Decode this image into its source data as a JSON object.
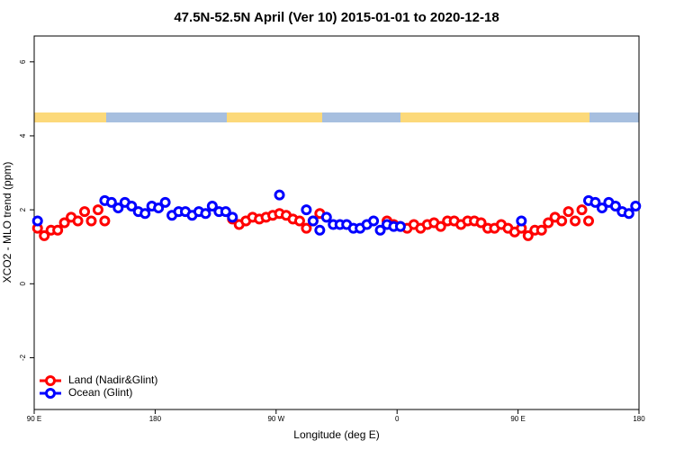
{
  "chart_data": {
    "type": "scatter",
    "title": "47.5N-52.5N April (Ver 10)   2015-01-01 to 2020-12-18",
    "xlabel": "Longitude (deg E)",
    "ylabel": "XCO2 - MLO trend (ppm)",
    "xlim": [
      90,
      540
    ],
    "ylim": [
      -3.4,
      6.7
    ],
    "xticks": [
      {
        "value": 90,
        "label": "90 E"
      },
      180,
      {
        "value": 270,
        "label": "90 W"
      },
      {
        "value": 360,
        "label": "0"
      },
      {
        "value": 450,
        "label": "90 E"
      },
      {
        "value": 540,
        "label": "180"
      }
    ],
    "yticks": [
      -2,
      0,
      2,
      4,
      6
    ],
    "legend": "bottom-left",
    "series": [
      {
        "name": "Land (Nadir&Glint)",
        "color": "#ff0000",
        "x": [
          92.5,
          97.5,
          102.5,
          107.5,
          112.5,
          117.5,
          122.5,
          127.5,
          132.5,
          137.5,
          142.5,
          237.5,
          242.5,
          247.5,
          252.5,
          257.5,
          262.5,
          267.5,
          272.5,
          277.5,
          282.5,
          287.5,
          292.5,
          297.5,
          302.5,
          352.5,
          357.5,
          362.5,
          367.5,
          372.5,
          377.5,
          382.5,
          387.5,
          392.5,
          397.5,
          402.5,
          407.5,
          412.5,
          417.5,
          422.5,
          427.5,
          432.5,
          437.5,
          442.5,
          447.5,
          452.5,
          457.5,
          462.5,
          467.5,
          472.5,
          477.5,
          482.5,
          487.5,
          492.5,
          497.5,
          502.5
        ],
        "values": [
          1.5,
          1.3,
          1.45,
          1.45,
          1.65,
          1.8,
          1.7,
          1.95,
          1.7,
          2.0,
          1.7,
          1.75,
          1.6,
          1.7,
          1.8,
          1.75,
          1.8,
          1.85,
          1.9,
          1.85,
          1.75,
          1.7,
          1.5,
          1.7,
          1.9,
          1.7,
          1.6,
          1.55,
          1.5,
          1.6,
          1.5,
          1.6,
          1.65,
          1.55,
          1.7,
          1.7,
          1.6,
          1.7,
          1.7,
          1.65,
          1.5,
          1.5,
          1.6,
          1.5,
          1.4,
          1.5,
          1.3,
          1.45,
          1.45,
          1.65,
          1.8,
          1.7,
          1.95,
          1.7,
          2.0,
          1.7
        ]
      },
      {
        "name": "Ocean (Glint)",
        "color": "#0000ff",
        "x": [
          92.5,
          142.5,
          147.5,
          152.5,
          157.5,
          162.5,
          167.5,
          172.5,
          177.5,
          182.5,
          187.5,
          192.5,
          197.5,
          202.5,
          207.5,
          212.5,
          217.5,
          222.5,
          227.5,
          232.5,
          237.5,
          272.5,
          292.5,
          297.5,
          302.5,
          307.5,
          312.5,
          317.5,
          322.5,
          327.5,
          332.5,
          337.5,
          342.5,
          347.5,
          352.5,
          357.5,
          362.5,
          452.5,
          502.5,
          507.5,
          512.5,
          517.5,
          522.5,
          527.5,
          532.5,
          537.5
        ],
        "values": [
          1.7,
          2.25,
          2.2,
          2.05,
          2.2,
          2.1,
          1.95,
          1.9,
          2.1,
          2.05,
          2.2,
          1.85,
          1.95,
          1.95,
          1.85,
          1.95,
          1.9,
          2.1,
          1.95,
          1.95,
          1.8,
          2.4,
          2.0,
          1.7,
          1.45,
          1.8,
          1.6,
          1.6,
          1.6,
          1.5,
          1.5,
          1.6,
          1.7,
          1.45,
          1.6,
          1.55,
          1.55,
          1.7,
          2.25,
          2.2,
          2.05,
          2.2,
          2.1,
          1.95,
          1.9,
          2.1
        ]
      }
    ]
  }
}
